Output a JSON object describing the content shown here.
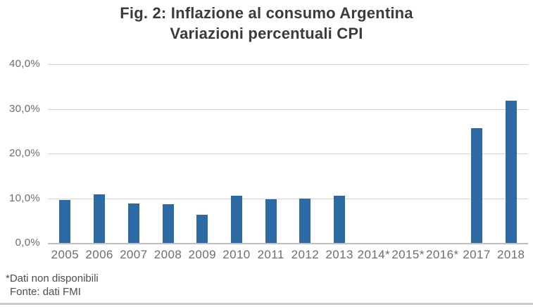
{
  "chart_data": {
    "type": "bar",
    "title": "Fig. 2: Inflazione al consumo Argentina",
    "subtitle": "Variazioni percentuali CPI",
    "categories": [
      "2005",
      "2006",
      "2007",
      "2008",
      "2009",
      "2010",
      "2011",
      "2012",
      "2013",
      "2014*",
      "2015*",
      "2016*",
      "2017",
      "2018"
    ],
    "values": [
      9.6,
      10.9,
      8.8,
      8.6,
      6.3,
      10.5,
      9.8,
      10.0,
      10.6,
      null,
      null,
      null,
      25.7,
      31.8
    ],
    "missing_data_categories": [
      "2014*",
      "2015*",
      "2016*"
    ],
    "xlabel": "",
    "ylabel": "",
    "ylim": [
      0,
      40
    ],
    "y_ticks": [
      {
        "label": "40,0%",
        "value": 40
      },
      {
        "label": "30,0%",
        "value": 30
      },
      {
        "label": "20,0%",
        "value": 20
      },
      {
        "label": "10,0%",
        "value": 10
      },
      {
        "label": "0,0%",
        "value": 0
      }
    ],
    "grid": "horizontal",
    "legend": "none",
    "bar_color": "#2d6aa3",
    "number_format": "italian-decimal-comma-percent"
  },
  "footnotes": {
    "line1": "*Dati non disponibili",
    "line2": "Fonte: dati FMI"
  },
  "colors": {
    "background": "#ffffff",
    "title_text": "#3b3b3b",
    "axis_text": "#6e6e6e",
    "footnote_text": "#4d4d4d",
    "gridline": "#d4d4d4",
    "baseline": "#bfbfbf",
    "bottom_rule": "#c9c9c9",
    "bar": "#2d6aa3"
  }
}
